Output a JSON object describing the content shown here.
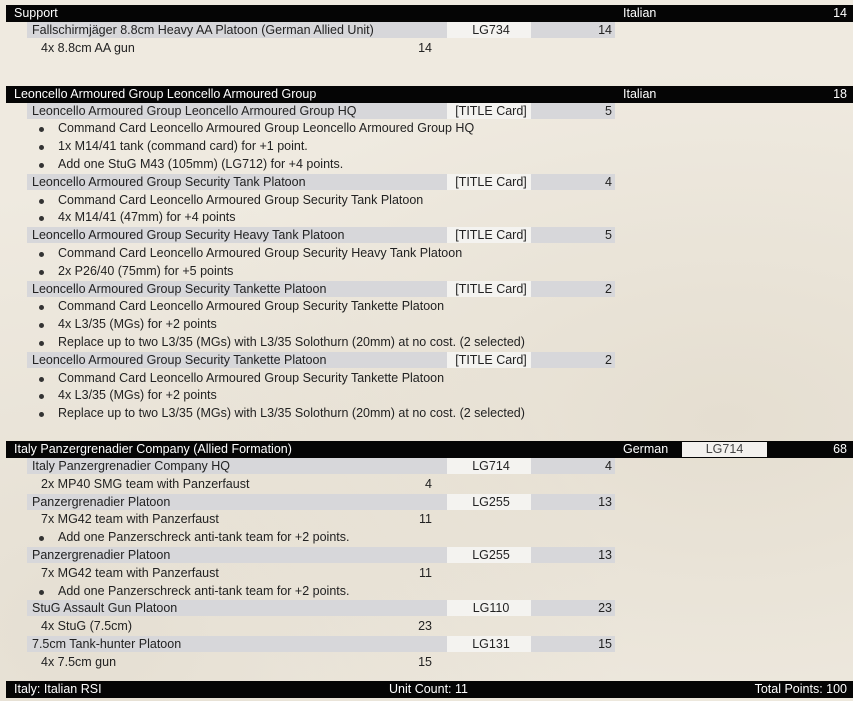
{
  "sections": [
    {
      "title": "Support",
      "nation": "Italian",
      "code": "",
      "points": "14",
      "rows": [
        {
          "kind": "unit",
          "name": "Fallschirmjäger 8.8cm Heavy AA Platoon (German Allied Unit)",
          "code": "LG734",
          "points": "14"
        },
        {
          "kind": "item",
          "name": "4x 8.8cm AA gun",
          "points": "14"
        }
      ]
    },
    {
      "title": "Leoncello Armoured Group Leoncello Armoured Group",
      "nation": "Italian",
      "code": "",
      "points": "18",
      "rows": [
        {
          "kind": "unit",
          "name": "Leoncello Armoured Group Leoncello Armoured Group HQ",
          "code": "[TITLE Card]",
          "points": "5"
        },
        {
          "kind": "bullet",
          "text": "Command Card Leoncello Armoured Group Leoncello Armoured Group HQ"
        },
        {
          "kind": "bullet",
          "text": "1x M14/41 tank (command card) for +1 point."
        },
        {
          "kind": "bullet",
          "text": "Add one StuG M43 (105mm) (LG712) for +4 points."
        },
        {
          "kind": "unit",
          "name": "Leoncello Armoured Group Security Tank Platoon",
          "code": "[TITLE Card]",
          "points": "4"
        },
        {
          "kind": "bullet",
          "text": "Command Card Leoncello Armoured Group Security Tank Platoon"
        },
        {
          "kind": "bullet",
          "text": "4x M14/41 (47mm) for +4 points"
        },
        {
          "kind": "unit",
          "name": "Leoncello Armoured Group Security Heavy Tank Platoon",
          "code": "[TITLE Card]",
          "points": "5"
        },
        {
          "kind": "bullet",
          "text": "Command Card Leoncello Armoured Group Security Heavy Tank Platoon"
        },
        {
          "kind": "bullet",
          "text": "2x P26/40 (75mm) for +5 points"
        },
        {
          "kind": "unit",
          "name": "Leoncello Armoured Group Security Tankette Platoon",
          "code": "[TITLE Card]",
          "points": "2"
        },
        {
          "kind": "bullet",
          "text": "Command Card Leoncello Armoured Group Security Tankette Platoon"
        },
        {
          "kind": "bullet",
          "text": "4x L3/35 (MGs) for +2 points"
        },
        {
          "kind": "bullet",
          "text": "Replace up to two L3/35 (MGs) with L3/35 Solothurn (20mm) at no cost.  (2 selected)"
        },
        {
          "kind": "unit",
          "name": "Leoncello Armoured Group Security Tankette Platoon",
          "code": "[TITLE Card]",
          "points": "2"
        },
        {
          "kind": "bullet",
          "text": "Command Card Leoncello Armoured Group Security Tankette Platoon"
        },
        {
          "kind": "bullet",
          "text": "4x L3/35 (MGs) for +2 points"
        },
        {
          "kind": "bullet",
          "text": "Replace up to two L3/35 (MGs) with L3/35 Solothurn (20mm) at no cost.  (2 selected)"
        }
      ]
    },
    {
      "title": "Italy Panzergrenadier Company (Allied Formation)",
      "nation": "German",
      "code": "LG714",
      "points": "68",
      "rows": [
        {
          "kind": "unit",
          "name": "Italy Panzergrenadier Company HQ",
          "code": "LG714",
          "points": "4"
        },
        {
          "kind": "item",
          "name": "2x MP40 SMG team with Panzerfaust",
          "points": "4"
        },
        {
          "kind": "unit",
          "name": "Panzergrenadier Platoon",
          "code": "LG255",
          "points": "13"
        },
        {
          "kind": "item",
          "name": "7x MG42 team with Panzerfaust",
          "points": "11"
        },
        {
          "kind": "bullet",
          "text": "Add one Panzerschreck anti-tank team for +2 points."
        },
        {
          "kind": "unit",
          "name": "Panzergrenadier Platoon",
          "code": "LG255",
          "points": "13"
        },
        {
          "kind": "item",
          "name": "7x MG42 team with Panzerfaust",
          "points": "11"
        },
        {
          "kind": "bullet",
          "text": "Add one Panzerschreck anti-tank team for +2 points."
        },
        {
          "kind": "unit",
          "name": "StuG Assault Gun Platoon",
          "code": "LG110",
          "points": "23"
        },
        {
          "kind": "item",
          "name": "4x StuG (7.5cm)",
          "points": "23"
        },
        {
          "kind": "unit",
          "name": "7.5cm Tank-hunter Platoon",
          "code": "LG131",
          "points": "15"
        },
        {
          "kind": "item",
          "name": "4x 7.5cm gun",
          "points": "15"
        }
      ]
    }
  ],
  "footer": {
    "army": "Italy: Italian RSI",
    "unit_count": "Unit Count: 11",
    "total_points": "Total Points: 100"
  }
}
